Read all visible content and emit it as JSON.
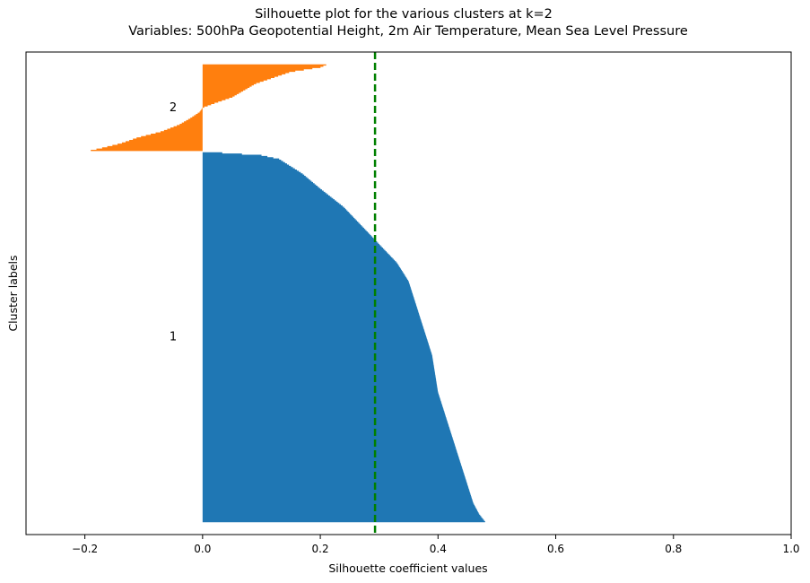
{
  "chart_data": {
    "type": "bar",
    "orientation": "horizontal",
    "title": "Silhouette plot for the various clusters at k=2",
    "subtitle": "Variables: 500hPa Geopotential Height, 2m Air Temperature, Mean Sea Level Pressure",
    "xlabel": "Silhouette coefficient values",
    "ylabel": "Cluster labels",
    "xlim": [
      -0.3,
      1.0
    ],
    "xticks": [
      "−0.2",
      "0.0",
      "0.2",
      "0.4",
      "0.6",
      "0.8",
      "1.0"
    ],
    "xtick_values": [
      -0.2,
      0.0,
      0.2,
      0.4,
      0.6,
      0.8,
      1.0
    ],
    "yticks": "none",
    "average_line": {
      "value": 0.293,
      "color": "#008000",
      "style": "dashed"
    },
    "grid": false,
    "clusters": [
      {
        "label": "1",
        "color": "#1f77b4",
        "sample_index_range": [
          10,
          310
        ],
        "silhouette_profile": {
          "fraction": [
            0.0,
            0.02,
            0.05,
            0.1,
            0.15,
            0.2,
            0.25,
            0.3,
            0.35,
            0.4,
            0.45,
            0.5,
            0.55,
            0.6,
            0.65,
            0.7,
            0.75,
            0.8,
            0.85,
            0.9,
            0.94,
            0.96,
            0.98,
            0.99,
            1.0
          ],
          "value": [
            0.48,
            0.47,
            0.46,
            0.45,
            0.44,
            0.43,
            0.42,
            0.41,
            0.4,
            0.395,
            0.39,
            0.38,
            0.37,
            0.36,
            0.35,
            0.33,
            0.3,
            0.27,
            0.24,
            0.2,
            0.17,
            0.15,
            0.13,
            0.1,
            0.0
          ]
        }
      },
      {
        "label": "2",
        "color": "#ff7f0e",
        "sample_index_range": [
          310,
          380
        ],
        "silhouette_profile": {
          "fraction": [
            0.0,
            0.03,
            0.08,
            0.15,
            0.22,
            0.3,
            0.38,
            0.45,
            0.5,
            0.55,
            0.62,
            0.7,
            0.78,
            0.85,
            0.92,
            0.97,
            1.0
          ],
          "value": [
            -0.19,
            -0.17,
            -0.14,
            -0.11,
            -0.07,
            -0.04,
            -0.02,
            -0.005,
            0.0,
            0.02,
            0.05,
            0.07,
            0.09,
            0.12,
            0.15,
            0.2,
            0.21
          ]
        }
      }
    ]
  }
}
